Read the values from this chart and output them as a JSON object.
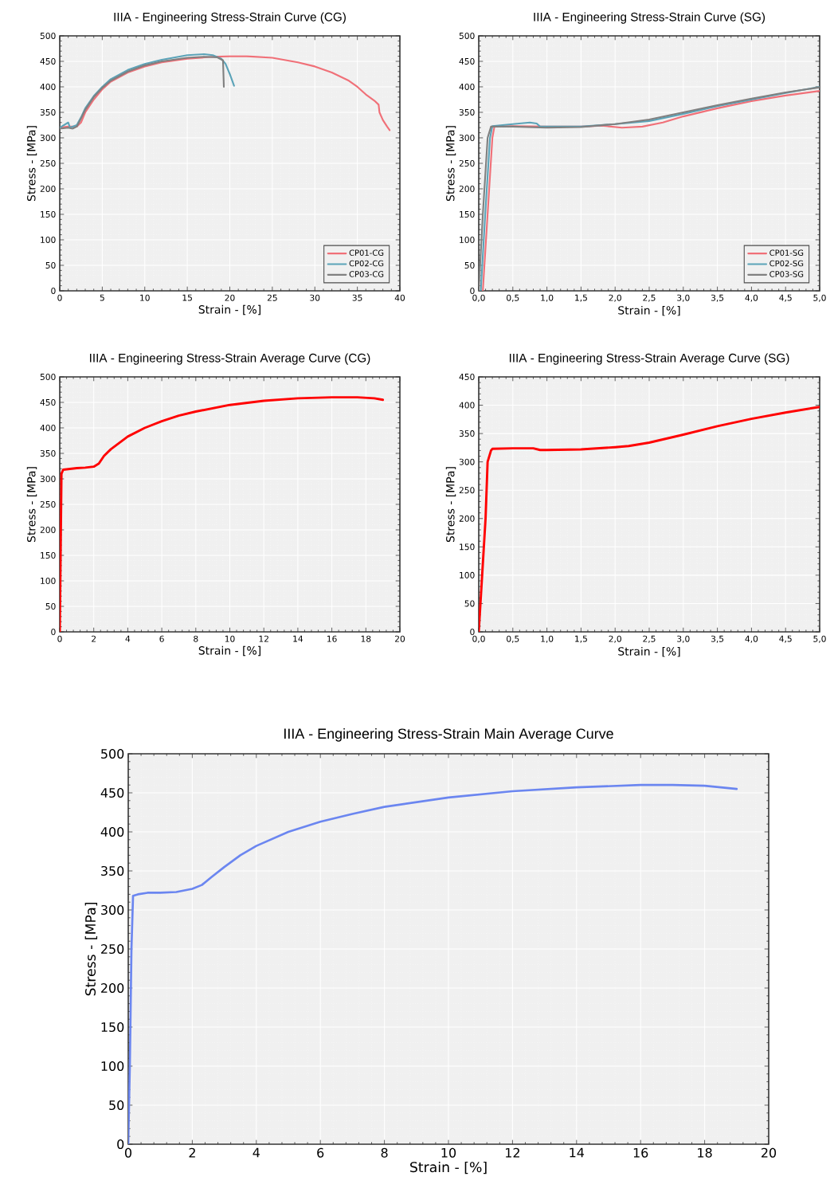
{
  "chart_data": [
    {
      "type": "line",
      "title": "IIIA - Engineering Stress-Strain Curve (CG)",
      "xlabel": "Strain - [%]",
      "ylabel": "Stress - [MPa]",
      "xlim": [
        0,
        40
      ],
      "ylim": [
        0,
        500
      ],
      "xticks": [
        0,
        5,
        10,
        15,
        20,
        25,
        30,
        35,
        40
      ],
      "yticks": [
        0,
        50,
        100,
        150,
        200,
        250,
        300,
        350,
        400,
        450,
        500
      ],
      "grid": true,
      "legend": "bottom right",
      "series": [
        {
          "name": "CP01-CG",
          "color": "#f07078",
          "x": [
            0,
            1,
            2,
            2.5,
            3,
            4,
            5,
            6,
            8,
            10,
            12,
            15,
            18,
            20,
            22,
            25,
            28,
            30,
            32,
            34,
            35,
            36,
            37,
            37.5,
            37.6,
            38,
            38.5,
            38.8
          ],
          "values": [
            320,
            322,
            322,
            330,
            350,
            375,
            395,
            410,
            428,
            440,
            448,
            455,
            459,
            460,
            460,
            457,
            448,
            440,
            428,
            412,
            400,
            385,
            373,
            365,
            350,
            335,
            322,
            315
          ]
        },
        {
          "name": "CP02-CG",
          "color": "#5ba3b8",
          "x": [
            0,
            0.5,
            1,
            1.2,
            1.5,
            2,
            2.5,
            3,
            4,
            5,
            6,
            8,
            10,
            12,
            15,
            17,
            18,
            19,
            19.5,
            20,
            20.5
          ],
          "values": [
            320,
            325,
            330,
            320,
            322,
            325,
            340,
            358,
            382,
            400,
            415,
            433,
            445,
            453,
            462,
            464,
            462,
            455,
            445,
            425,
            402
          ]
        },
        {
          "name": "CP03-CG",
          "color": "#808080",
          "x": [
            0,
            1,
            1.5,
            2,
            2.5,
            3,
            4,
            5,
            6,
            8,
            10,
            12,
            15,
            17,
            18.5,
            19.2,
            19.3
          ],
          "values": [
            318,
            320,
            318,
            322,
            338,
            355,
            380,
            398,
            412,
            430,
            442,
            450,
            457,
            459,
            458,
            452,
            400
          ]
        }
      ]
    },
    {
      "type": "line",
      "title": "IIIA - Engineering Stress-Strain Curve (SG)",
      "xlabel": "Strain - [%]",
      "ylabel": "Stress - [MPa]",
      "xlim": [
        0,
        5
      ],
      "ylim": [
        0,
        500
      ],
      "xticks": [
        {
          "value": 0,
          "label": "0,0"
        },
        {
          "value": 0.5,
          "label": "0,5"
        },
        {
          "value": 1,
          "label": "1,0"
        },
        {
          "value": 1.5,
          "label": "1,5"
        },
        {
          "value": 2,
          "label": "2,0"
        },
        {
          "value": 2.5,
          "label": "2,5"
        },
        {
          "value": 3,
          "label": "3,0"
        },
        {
          "value": 3.5,
          "label": "3,5"
        },
        {
          "value": 4,
          "label": "4,0"
        },
        {
          "value": 4.5,
          "label": "4,5"
        },
        {
          "value": 5,
          "label": "5,0"
        }
      ],
      "yticks": [
        0,
        50,
        100,
        150,
        200,
        250,
        300,
        350,
        400,
        450,
        500
      ],
      "grid": true,
      "legend": "bottom right",
      "series": [
        {
          "name": "CP01-SG",
          "color": "#f07078",
          "x": [
            0.06,
            0.13,
            0.2,
            0.23,
            0.5,
            1,
            1.5,
            1.8,
            2.1,
            2.4,
            2.7,
            3,
            3.5,
            4,
            4.5,
            5
          ],
          "values": [
            0,
            150,
            300,
            322,
            323,
            322,
            322,
            324,
            320,
            322,
            330,
            342,
            358,
            372,
            383,
            392
          ]
        },
        {
          "name": "CP02-SG",
          "color": "#5ba3b8",
          "x": [
            0.03,
            0.095,
            0.165,
            0.2,
            0.5,
            0.75,
            0.85,
            0.9,
            1.5,
            2,
            2.5,
            3,
            3.5,
            4,
            4.5,
            5
          ],
          "values": [
            0,
            150,
            300,
            323,
            327,
            330,
            328,
            322,
            322,
            327,
            333,
            347,
            362,
            375,
            388,
            400
          ]
        },
        {
          "name": "CP03-SG",
          "color": "#808080",
          "x": [
            0,
            0.06,
            0.13,
            0.18,
            0.5,
            1,
            1.5,
            2,
            2.5,
            3,
            3.5,
            4,
            4.5,
            5
          ],
          "values": [
            0,
            150,
            300,
            322,
            322,
            320,
            321,
            327,
            336,
            350,
            364,
            377,
            389,
            399
          ]
        }
      ]
    },
    {
      "type": "line",
      "title": "IIIA - Engineering Stress-Strain Average Curve (CG)",
      "xlabel": "Strain - [%]",
      "ylabel": "Stress - [MPa]",
      "xlim": [
        0,
        20
      ],
      "ylim": [
        0,
        500
      ],
      "xticks": [
        0,
        2,
        4,
        6,
        8,
        10,
        12,
        14,
        16,
        18,
        20
      ],
      "yticks": [
        0,
        50,
        100,
        150,
        200,
        250,
        300,
        350,
        400,
        450,
        500
      ],
      "grid": true,
      "series": [
        {
          "color": "#ff0000",
          "x": [
            0,
            0.05,
            0.1,
            0.2,
            1,
            1.5,
            2,
            2.3,
            2.6,
            3,
            4,
            5,
            6,
            7,
            8,
            10,
            12,
            14,
            16,
            17.5,
            18.5,
            19
          ],
          "values": [
            0,
            150,
            310,
            318,
            321,
            322,
            324,
            330,
            345,
            358,
            383,
            400,
            413,
            424,
            432,
            445,
            453,
            458,
            460,
            460,
            458,
            455
          ]
        }
      ]
    },
    {
      "type": "line",
      "title": "IIIA - Engineering Stress-Strain Average Curve (SG)",
      "xlabel": "Strain - [%]",
      "ylabel": "Stress - [MPa]",
      "xlim": [
        0,
        5
      ],
      "ylim": [
        0,
        450
      ],
      "xticks": [
        {
          "value": 0,
          "label": "0,0"
        },
        {
          "value": 0.5,
          "label": "0,5"
        },
        {
          "value": 1,
          "label": "1,0"
        },
        {
          "value": 1.5,
          "label": "1,5"
        },
        {
          "value": 2,
          "label": "2,0"
        },
        {
          "value": 2.5,
          "label": "2,5"
        },
        {
          "value": 3,
          "label": "3,0"
        },
        {
          "value": 3.5,
          "label": "3,5"
        },
        {
          "value": 4,
          "label": "4,0"
        },
        {
          "value": 4.5,
          "label": "4,5"
        },
        {
          "value": 5,
          "label": "5,0"
        }
      ],
      "yticks": [
        0,
        50,
        100,
        150,
        200,
        250,
        300,
        350,
        400,
        450
      ],
      "grid": true,
      "series": [
        {
          "color": "#ff0000",
          "x": [
            0,
            0.05,
            0.1,
            0.13,
            0.18,
            0.2,
            0.5,
            0.8,
            0.9,
            1,
            1.5,
            2,
            2.2,
            2.5,
            3,
            3.5,
            4,
            4.5,
            5
          ],
          "values": [
            0,
            100,
            200,
            300,
            320,
            323,
            324,
            324,
            321,
            321,
            322,
            326,
            328,
            334,
            348,
            363,
            376,
            387,
            397
          ]
        }
      ]
    },
    {
      "type": "line",
      "title": "IIIA - Engineering Stress-Strain Main Average Curve",
      "xlabel": "Strain - [%]",
      "ylabel": "Stress - [MPa]",
      "xlim": [
        0,
        20
      ],
      "ylim": [
        0,
        500
      ],
      "xticks": [
        0,
        2,
        4,
        6,
        8,
        10,
        12,
        14,
        16,
        18,
        20
      ],
      "yticks": [
        0,
        50,
        100,
        150,
        200,
        250,
        300,
        350,
        400,
        450,
        500
      ],
      "grid": true,
      "series": [
        {
          "color": "#6b86f0",
          "x": [
            0,
            0.05,
            0.1,
            0.15,
            0.3,
            0.6,
            1,
            1.5,
            2,
            2.3,
            2.6,
            3,
            3.5,
            4,
            5,
            6,
            7,
            8,
            10,
            12,
            14,
            16,
            17,
            18,
            19
          ],
          "values": [
            0,
            100,
            250,
            318,
            320,
            322,
            322,
            323,
            327,
            332,
            342,
            355,
            370,
            382,
            400,
            413,
            423,
            432,
            444,
            452,
            457,
            460,
            460,
            459,
            455
          ]
        }
      ]
    }
  ]
}
